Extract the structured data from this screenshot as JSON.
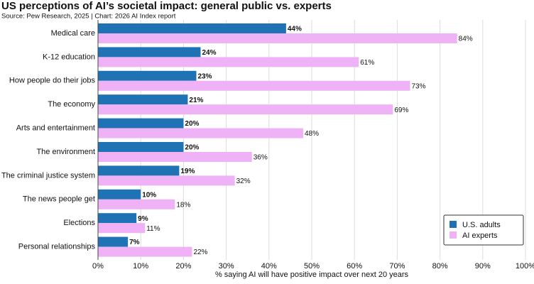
{
  "chart_data": {
    "type": "grouped-barh",
    "title": "US perceptions of AI’s societal impact: general public vs. experts",
    "subtitle": "Source: Pew Research, 2025 | Chart: 2026 AI Index report",
    "x_label": "% saying AI will have positive impact over next 20 years",
    "categories": [
      "Medical care",
      "K-12 education",
      "How people do their jobs",
      "The economy",
      "Arts and entertainment",
      "The environment",
      "The criminal justice system",
      "The news people get",
      "Elections",
      "Personal relationships"
    ],
    "series": [
      {
        "name": "U.S. adults",
        "color": "#1f72b4",
        "label_color": "#1f6aa8",
        "values": [
          44,
          24,
          23,
          21,
          20,
          20,
          19,
          10,
          9,
          7
        ],
        "value_labels": [
          "44%",
          "24%",
          "23%",
          "21%",
          "20%",
          "20%",
          "19%",
          "10%",
          "9%",
          "7%"
        ]
      },
      {
        "name": "AI experts",
        "color": "#f0b2f6",
        "label_color": "#e3a3ec",
        "values": [
          84,
          61,
          73,
          69,
          48,
          36,
          32,
          18,
          11,
          22
        ],
        "value_labels": [
          "84%",
          "61%",
          "73%",
          "69%",
          "48%",
          "36%",
          "32%",
          "18%",
          "11%",
          "22%"
        ]
      }
    ],
    "xlim": [
      0,
      100
    ],
    "xticks": [
      {
        "value": 0,
        "label": "0%"
      },
      {
        "value": 10,
        "label": "10%"
      },
      {
        "value": 20,
        "label": "20%"
      },
      {
        "value": 30,
        "label": "30%"
      },
      {
        "value": 40,
        "label": "40%"
      },
      {
        "value": 50,
        "label": "50%"
      },
      {
        "value": 60,
        "label": "60%"
      },
      {
        "value": 70,
        "label": "70%"
      },
      {
        "value": 80,
        "label": "80%"
      },
      {
        "value": 90,
        "label": "90%"
      },
      {
        "value": 100,
        "label": "100%"
      }
    ],
    "grid": true,
    "legend": "lower right"
  }
}
